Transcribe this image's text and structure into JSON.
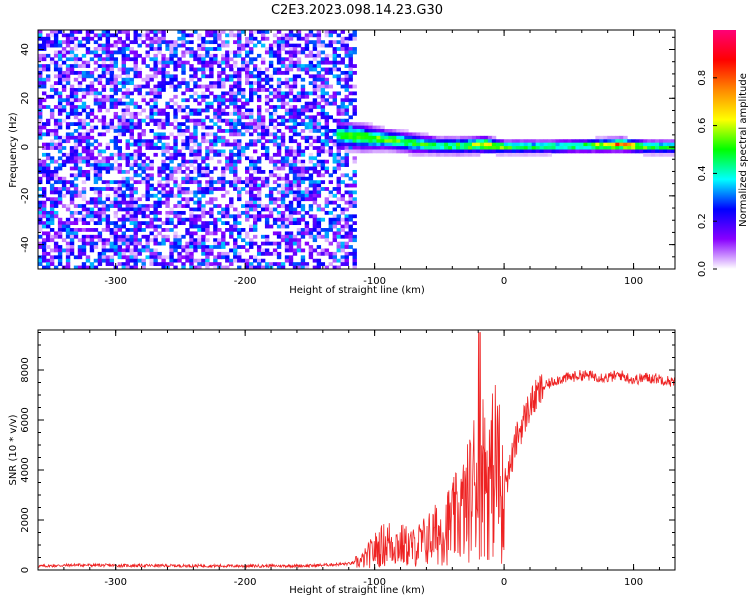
{
  "title": "C2E3.2023.098.14.23.G30",
  "colors": {
    "series": "#ee2222",
    "axis": "#000000",
    "background": "#ffffff"
  },
  "chart_data": [
    {
      "type": "heatmap",
      "xlabel": "Height of straight line (km)",
      "ylabel": "Frequency (Hz)",
      "xlim": [
        -360,
        132
      ],
      "ylim": [
        -50,
        48
      ],
      "x_ticks": [
        -300,
        -200,
        -100,
        0,
        100
      ],
      "y_ticks": [
        -40,
        -20,
        0,
        20,
        40
      ],
      "x_tick_labels": [
        "-300",
        "-200",
        "-100",
        "0",
        "100"
      ],
      "y_tick_labels": [
        "-40",
        "-20",
        "0",
        "20",
        "40"
      ],
      "colorbar": {
        "label": "Normalized spectral amplitude",
        "range": [
          0,
          1
        ],
        "ticks": [
          0.0,
          0.2,
          0.4,
          0.6,
          0.8
        ],
        "tick_labels": [
          "0.0",
          "0.2",
          "0.4",
          "0.6",
          "0.8"
        ],
        "colormap": [
          "#ffffff",
          "#8800ff",
          "#0000ff",
          "#00ffff",
          "#00ff00",
          "#ffff00",
          "#ff8800",
          "#ff0000",
          "#ff0077"
        ]
      },
      "noise_region_x": [
        -360,
        -114
      ],
      "noise_amplitude_range": [
        0.0,
        0.35
      ],
      "signal_ridge": [
        {
          "x": -128,
          "center_hz": 5,
          "halfwidth_hz": 4,
          "peak": 0.55
        },
        {
          "x": -110,
          "center_hz": 4,
          "halfwidth_hz": 4,
          "peak": 0.6
        },
        {
          "x": -90,
          "center_hz": 3,
          "halfwidth_hz": 3,
          "peak": 0.6
        },
        {
          "x": -70,
          "center_hz": 1.5,
          "halfwidth_hz": 3,
          "peak": 0.55
        },
        {
          "x": -50,
          "center_hz": 0.5,
          "halfwidth_hz": 2.5,
          "peak": 0.55
        },
        {
          "x": -30,
          "center_hz": 0.5,
          "halfwidth_hz": 2.5,
          "peak": 0.6
        },
        {
          "x": -15,
          "center_hz": 1,
          "halfwidth_hz": 2.5,
          "peak": 0.75
        },
        {
          "x": 0,
          "center_hz": 0,
          "halfwidth_hz": 2,
          "peak": 0.6
        },
        {
          "x": 30,
          "center_hz": 0,
          "halfwidth_hz": 2,
          "peak": 0.55
        },
        {
          "x": 60,
          "center_hz": 0.5,
          "halfwidth_hz": 2,
          "peak": 0.55
        },
        {
          "x": 90,
          "center_hz": 1,
          "halfwidth_hz": 2,
          "peak": 0.9
        },
        {
          "x": 110,
          "center_hz": 0,
          "halfwidth_hz": 2,
          "peak": 0.6
        },
        {
          "x": 132,
          "center_hz": 0,
          "halfwidth_hz": 2,
          "peak": 0.55
        }
      ]
    },
    {
      "type": "line",
      "xlabel": "Height of straight line (km)",
      "ylabel": "SNR (10 * v/v)",
      "xlim": [
        -360,
        132
      ],
      "ylim": [
        0,
        9600
      ],
      "x_ticks": [
        -300,
        -200,
        -100,
        0,
        100
      ],
      "y_ticks": [
        0,
        2000,
        4000,
        6000,
        8000
      ],
      "x_tick_labels": [
        "-300",
        "-200",
        "-100",
        "0",
        "100"
      ],
      "y_tick_labels": [
        "0",
        "2000",
        "4000",
        "6000",
        "8000"
      ],
      "grid": false,
      "series": [
        {
          "color": "#ee2222",
          "x": [
            -360,
            -330,
            -300,
            -250,
            -200,
            -150,
            -120,
            -110,
            -100,
            -90,
            -80,
            -70,
            -60,
            -50,
            -40,
            -30,
            -25,
            -20,
            -15,
            -10,
            -5,
            -2,
            0,
            5,
            10,
            20,
            30,
            40,
            50,
            60,
            70,
            80,
            90,
            100,
            110,
            120,
            132
          ],
          "y": [
            150,
            200,
            180,
            170,
            160,
            170,
            250,
            350,
            800,
            1100,
            1000,
            900,
            1200,
            1500,
            1900,
            2500,
            3100,
            4200,
            3800,
            3600,
            4500,
            2600,
            3300,
            4200,
            5300,
            6600,
            7300,
            7600,
            7700,
            7800,
            7750,
            7700,
            7800,
            7600,
            7700,
            7650,
            7500
          ]
        }
      ],
      "annotations": [
        {
          "x": -18,
          "y": 9500,
          "text": ""
        },
        {
          "x": 0,
          "y": 250,
          "text": ""
        }
      ]
    }
  ]
}
